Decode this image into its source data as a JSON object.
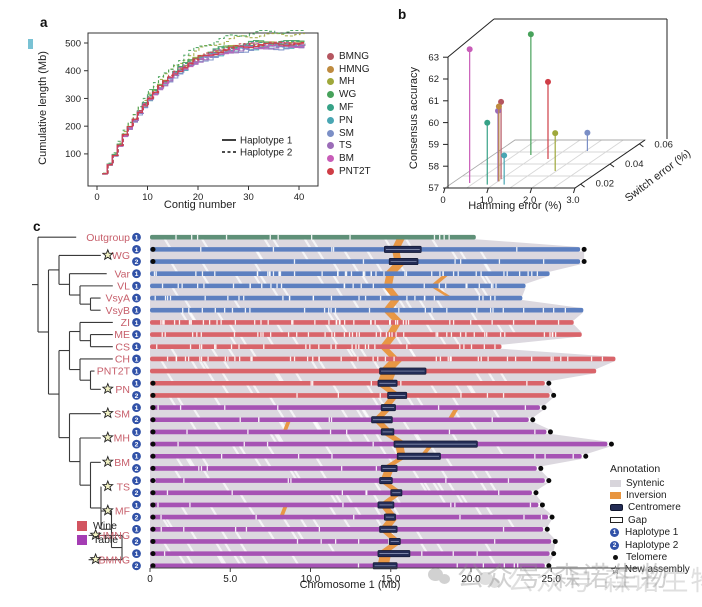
{
  "panels": {
    "a": "a",
    "b": "b",
    "c": "c"
  },
  "chart_data": [
    {
      "id": "a",
      "type": "line",
      "xlabel": "Contig number",
      "ylabel": "Cumulative length (Mb)",
      "x_ticks": [
        0,
        10,
        20,
        30,
        40
      ],
      "y_ticks": [
        100,
        200,
        300,
        400,
        500
      ],
      "xlim": [
        0,
        42
      ],
      "ylim": [
        0,
        560
      ],
      "grid": false,
      "legend_position": "right",
      "line_styles": [
        {
          "label": "Haplotype 1",
          "dash": "solid"
        },
        {
          "label": "Haplotype 2",
          "dash": "dashed"
        }
      ],
      "shape_points": [
        [
          1,
          28
        ],
        [
          3,
          95
        ],
        [
          5,
          168
        ],
        [
          8,
          252
        ],
        [
          10,
          303
        ],
        [
          12,
          343
        ],
        [
          15,
          392
        ],
        [
          18,
          428
        ],
        [
          20,
          448
        ],
        [
          23,
          466
        ],
        [
          25,
          476
        ],
        [
          28,
          487
        ],
        [
          30,
          492
        ],
        [
          34,
          497
        ],
        [
          38,
          499
        ],
        [
          41,
          500
        ]
      ],
      "series": [
        {
          "name": "BMNG",
          "color": "#b55660",
          "hap1_final": 500,
          "hap2_final": 504
        },
        {
          "name": "HMNG",
          "color": "#bf8b3f",
          "hap1_final": 494,
          "hap2_final": 499
        },
        {
          "name": "MH",
          "color": "#9fa83b",
          "hap1_final": 504,
          "hap2_final": 534
        },
        {
          "name": "WG",
          "color": "#47a25b",
          "hap1_final": 509,
          "hap2_final": 545
        },
        {
          "name": "MF",
          "color": "#36a287",
          "hap1_final": 494,
          "hap2_final": 506
        },
        {
          "name": "PN",
          "color": "#49a6b3",
          "hap1_final": 489,
          "hap2_final": 497
        },
        {
          "name": "SM",
          "color": "#7b8fc6",
          "hap1_final": 484,
          "hap2_final": 491
        },
        {
          "name": "TS",
          "color": "#9b6cb8",
          "hap1_final": 488,
          "hap2_final": 495
        },
        {
          "name": "BM",
          "color": "#c85cb8",
          "hap1_final": 492,
          "hap2_final": 501
        },
        {
          "name": "PNT2T",
          "color": "#cf3d46",
          "hap1_final": 499,
          "hap2_final": 503
        }
      ]
    },
    {
      "id": "b",
      "type": "scatter",
      "xlabel": "Hamming error (%)",
      "ylabel": "Switch error (%)",
      "zlabel": "Consensus accuracy",
      "x_ticks": [
        "0",
        "1.0",
        "2.0",
        "3.0"
      ],
      "y_ticks": [
        "0.02",
        "0.04",
        "0.06"
      ],
      "z_ticks": [
        57,
        58,
        59,
        60,
        61,
        62,
        63
      ],
      "xlim": [
        0,
        3
      ],
      "ylim": [
        0,
        0.06
      ],
      "zlim": [
        57,
        63
      ],
      "points": [
        {
          "name": "SM",
          "color": "#7b8fc6",
          "hamming": 1.94,
          "switch": 0.05,
          "accuracy": 57.7
        },
        {
          "name": "WG",
          "color": "#47a25b",
          "hamming": 0.77,
          "switch": 0.045,
          "accuracy": 62.4
        },
        {
          "name": "PNT2T",
          "color": "#cf3d46",
          "hamming": 1.3,
          "switch": 0.04,
          "accuracy": 60.4
        },
        {
          "name": "MH",
          "color": "#9fa83b",
          "hamming": 1.87,
          "switch": 0.025,
          "accuracy": 58.6
        },
        {
          "name": "BMNG",
          "color": "#b55660",
          "hamming": 0.89,
          "switch": 0.015,
          "accuracy": 60.4
        },
        {
          "name": "TS",
          "color": "#9b6cb8",
          "hamming": 0.9,
          "switch": 0.012,
          "accuracy": 60.1
        },
        {
          "name": "HMNG",
          "color": "#bf8b3f",
          "hamming": 0.92,
          "switch": 0.012,
          "accuracy": 60.3
        },
        {
          "name": "BM",
          "color": "#c85cb8",
          "hamming": 0.3,
          "switch": 0.01,
          "accuracy": 63.0
        },
        {
          "name": "MF",
          "color": "#36a287",
          "hamming": 0.76,
          "switch": 0.008,
          "accuracy": 59.7
        },
        {
          "name": "PN",
          "color": "#49a6b3",
          "hamming": 1.15,
          "switch": 0.008,
          "accuracy": 58.2
        }
      ]
    },
    {
      "id": "c",
      "type": "synteny-alignment",
      "xlabel": "Chromosome 1 (Mb)",
      "x_ticks": [
        "0",
        "5.0",
        "10.0",
        "15.0",
        "20.0",
        "25.0"
      ],
      "x_tick_values": [
        0,
        5,
        10,
        15,
        20,
        25
      ],
      "class_colors": {
        "outgroup": "#5f9078",
        "wild": "#5c7fc0",
        "wine": "#d9646a",
        "table": "#a653b4"
      },
      "syntenic_color": "#dcd8df",
      "inversion_color": "#e8943c",
      "centromere_color": "#232c55",
      "taxa": [
        {
          "name": "Outgroup",
          "cls": "outgroup",
          "star": false,
          "haps": [
            {
              "h": "1",
              "len": 20.3,
              "frag": "light"
            }
          ]
        },
        {
          "name": "WG",
          "cls": "wild",
          "star": true,
          "haps": [
            {
              "h": "1",
              "len": 26.8,
              "tel": true,
              "frag": "few",
              "cen": [
                14.6,
                16.9
              ]
            },
            {
              "h": "2",
              "len": 26.8,
              "tel": true,
              "frag": "few",
              "cen": [
                14.9,
                16.7
              ]
            }
          ]
        },
        {
          "name": "Var",
          "cls": "wild",
          "star": false,
          "haps": [
            {
              "h": "1",
              "len": 24.9,
              "frag": "heavy"
            }
          ]
        },
        {
          "name": "VL",
          "cls": "wild",
          "star": false,
          "haps": [
            {
              "h": "1",
              "len": 23.4,
              "frag": "med"
            }
          ]
        },
        {
          "name": "VsyA",
          "cls": "wild",
          "star": false,
          "haps": [
            {
              "h": "1",
              "len": 23.2,
              "frag": "med"
            }
          ]
        },
        {
          "name": "VsyB",
          "cls": "wild",
          "star": false,
          "haps": [
            {
              "h": "1",
              "len": 27.0,
              "frag": "med"
            }
          ]
        },
        {
          "name": "ZI",
          "cls": "wine",
          "star": false,
          "haps": [
            {
              "h": "1",
              "len": 26.4,
              "frag": "heavy"
            }
          ]
        },
        {
          "name": "ME",
          "cls": "wine",
          "star": false,
          "haps": [
            {
              "h": "1",
              "len": 26.9,
              "frag": "heavy"
            }
          ]
        },
        {
          "name": "CS",
          "cls": "wine",
          "star": false,
          "haps": [
            {
              "h": "1",
              "len": 21.9,
              "frag": "med"
            }
          ]
        },
        {
          "name": "CH",
          "cls": "wine",
          "star": false,
          "haps": [
            {
              "h": "1",
              "len": 29.0,
              "frag": "heavy"
            }
          ]
        },
        {
          "name": "PNT2T",
          "cls": "wine",
          "star": false,
          "haps": [
            {
              "h": "1",
              "len": 27.8,
              "cen": [
                14.3,
                17.2
              ]
            }
          ]
        },
        {
          "name": "PN",
          "cls": "wine",
          "star": true,
          "haps": [
            {
              "h": "1",
              "len": 24.6,
              "tel": true,
              "frag": "few",
              "cen": [
                14.2,
                15.4
              ]
            },
            {
              "h": "2",
              "len": 24.9,
              "tel": true,
              "frag": "few",
              "cen": [
                14.8,
                16.0
              ]
            }
          ]
        },
        {
          "name": "SM",
          "cls": "table",
          "star": true,
          "haps": [
            {
              "h": "1",
              "len": 24.3,
              "tel": true,
              "frag": "few",
              "cen": [
                14.4,
                15.3
              ]
            },
            {
              "h": "2",
              "len": 23.6,
              "tel": true,
              "frag": "few",
              "cen": [
                13.8,
                15.1
              ]
            }
          ]
        },
        {
          "name": "MH",
          "cls": "table",
          "star": true,
          "haps": [
            {
              "h": "1",
              "len": 24.7,
              "tel": true,
              "frag": "few",
              "cen": [
                14.4,
                15.2
              ]
            },
            {
              "h": "2",
              "len": 28.5,
              "tel": true,
              "frag": "few",
              "cen": [
                15.2,
                20.4
              ]
            }
          ]
        },
        {
          "name": "BM",
          "cls": "table",
          "star": true,
          "haps": [
            {
              "h": "1",
              "len": 26.9,
              "tel": true,
              "frag": "few",
              "cen": [
                15.4,
                18.1
              ]
            },
            {
              "h": "2",
              "len": 24.1,
              "tel": true,
              "frag": "few",
              "cen": [
                14.4,
                15.4
              ]
            }
          ]
        },
        {
          "name": "TS",
          "cls": "table",
          "star": true,
          "haps": [
            {
              "h": "1",
              "len": 24.6,
              "tel": true,
              "frag": "few",
              "cen": [
                14.3,
                15.1
              ]
            },
            {
              "h": "2",
              "len": 23.8,
              "tel": true,
              "frag": "few",
              "cen": [
                15.0,
                15.7
              ]
            }
          ]
        },
        {
          "name": "MF",
          "cls": "table",
          "star": true,
          "haps": [
            {
              "h": "1",
              "len": 24.2,
              "tel": true,
              "frag": "few",
              "cen": [
                14.2,
                15.2
              ]
            },
            {
              "h": "2",
              "len": 24.8,
              "tel": true,
              "frag": "few",
              "cen": [
                14.6,
                15.3
              ]
            }
          ]
        },
        {
          "name": "HMNG",
          "cls": "table",
          "star": true,
          "haps": [
            {
              "h": "1",
              "len": 24.5,
              "tel": true,
              "frag": "few",
              "cen": [
                14.3,
                15.4
              ]
            },
            {
              "h": "2",
              "len": 25.0,
              "tel": true,
              "frag": "few",
              "cen": [
                14.9,
                15.6
              ]
            }
          ]
        },
        {
          "name": "BMNG",
          "cls": "table",
          "star": true,
          "haps": [
            {
              "h": "1",
              "len": 24.9,
              "tel": true,
              "frag": "few",
              "cen": [
                14.2,
                16.2
              ]
            },
            {
              "h": "2",
              "len": 24.6,
              "tel": true,
              "frag": "few",
              "cen": [
                13.9,
                15.4
              ]
            }
          ]
        }
      ],
      "inversions": [
        [
          0,
          15.35,
          15.1,
          0.5
        ],
        [
          1,
          15.1,
          15.2,
          0.45
        ],
        [
          2,
          15.2,
          14.7,
          0.7
        ],
        [
          3,
          14.7,
          14.6,
          0.5
        ],
        [
          3,
          18.2,
          17.6,
          0.35
        ],
        [
          4,
          14.6,
          15.0,
          0.5
        ],
        [
          4,
          17.6,
          18.4,
          0.3
        ],
        [
          5,
          15.0,
          14.6,
          0.55
        ],
        [
          6,
          14.6,
          15.1,
          0.6
        ],
        [
          7,
          15.1,
          14.8,
          0.5
        ],
        [
          8,
          14.8,
          14.4,
          0.55
        ],
        [
          9,
          14.4,
          14.9,
          0.5
        ],
        [
          10,
          14.9,
          14.4,
          0.8
        ],
        [
          11,
          14.4,
          14.2,
          0.9
        ],
        [
          12,
          14.2,
          14.9,
          0.6
        ],
        [
          13,
          14.9,
          14.5,
          0.5
        ],
        [
          14,
          14.5,
          14.0,
          0.5
        ],
        [
          14,
          18.9,
          18.6,
          0.3
        ],
        [
          15,
          14.0,
          14.5,
          0.5
        ],
        [
          15,
          8.5,
          8.3,
          0.25
        ],
        [
          16,
          14.5,
          15.3,
          0.6
        ],
        [
          17,
          15.3,
          15.4,
          0.5
        ],
        [
          17,
          17.3,
          16.9,
          0.3
        ],
        [
          18,
          15.4,
          14.6,
          0.5
        ],
        [
          19,
          14.6,
          14.4,
          0.55
        ],
        [
          20,
          14.4,
          15.1,
          0.5
        ],
        [
          21,
          15.1,
          14.4,
          0.5
        ],
        [
          22,
          14.4,
          14.8,
          0.5
        ],
        [
          22,
          8.3,
          8.1,
          0.25
        ],
        [
          23,
          14.8,
          14.4,
          0.6
        ],
        [
          24,
          14.4,
          15.0,
          0.5
        ],
        [
          25,
          15.0,
          14.3,
          0.6
        ],
        [
          26,
          14.3,
          14.2,
          0.7
        ]
      ],
      "legend_groups": [
        {
          "label": "Wine",
          "color": "#d25460"
        },
        {
          "label": "Table",
          "color": "#a43db3"
        }
      ],
      "annotation": {
        "title": "Annotation",
        "items": [
          {
            "label": "Syntenic",
            "swatch": "syntenic"
          },
          {
            "label": "Inversion",
            "swatch": "inversion"
          },
          {
            "label": "Centromere",
            "swatch": "centromere"
          },
          {
            "label": "Gap",
            "swatch": "gap"
          },
          {
            "label": "Haplotype 1",
            "swatch": "hap",
            "num": "1"
          },
          {
            "label": "Haplotype 2",
            "swatch": "hap",
            "num": "2"
          },
          {
            "label": "Telomere",
            "swatch": "telomere"
          },
          {
            "label": "New assembly",
            "swatch": "star",
            "glyph": "☆"
          }
        ]
      }
    }
  ],
  "watermark": {
    "line1": "公众号 森诺生物",
    "line2": "公众号 森诺生物"
  }
}
